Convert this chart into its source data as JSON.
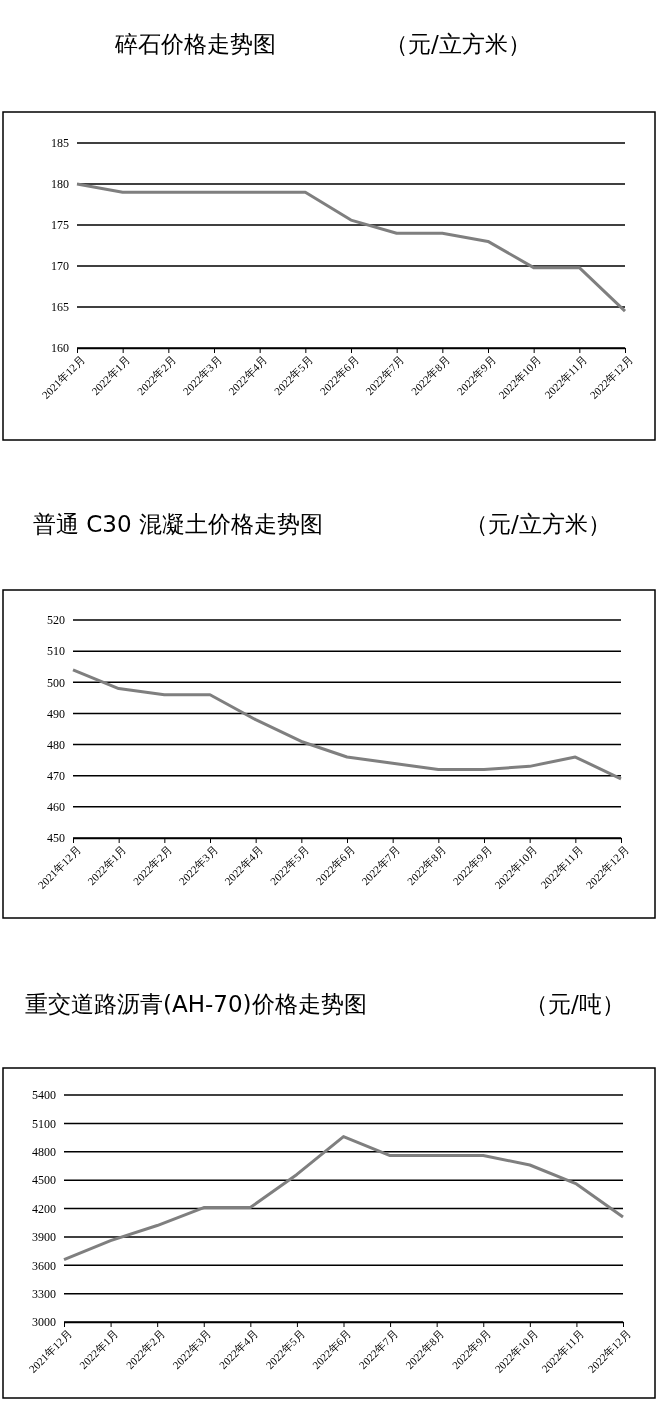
{
  "chart_data": [
    {
      "type": "line",
      "title": "碎石价格走势图",
      "subtitle": "（元/立方米）",
      "categories": [
        "2021年12月",
        "2022年1月",
        "2022年2月",
        "2022年3月",
        "2022年4月",
        "2022年5月",
        "2022年6月",
        "2022年7月",
        "2022年8月",
        "2022年9月",
        "2022年10月",
        "2022年11月",
        "2022年12月"
      ],
      "series": [
        {
          "color": "#7f7f7f",
          "values": [
            180,
            179,
            179,
            179,
            179,
            179,
            175.6,
            174,
            174,
            173,
            169.8,
            169.8,
            164.5
          ]
        }
      ],
      "ylim": [
        160,
        185
      ],
      "yticks": [
        160,
        165,
        170,
        175,
        180,
        185
      ],
      "grid": "y"
    },
    {
      "type": "line",
      "title": "普通 C30 混凝土价格走势图",
      "subtitle": "（元/立方米）",
      "categories": [
        "2021年12月",
        "2022年1月",
        "2022年2月",
        "2022年3月",
        "2022年4月",
        "2022年5月",
        "2022年6月",
        "2022年7月",
        "2022年8月",
        "2022年9月",
        "2022年10月",
        "2022年11月",
        "2022年12月"
      ],
      "series": [
        {
          "color": "#7f7f7f",
          "values": [
            504,
            498,
            496,
            496,
            488,
            481,
            476,
            474,
            472,
            472,
            473,
            476,
            469
          ]
        }
      ],
      "ylim": [
        450,
        520
      ],
      "yticks": [
        450,
        460,
        470,
        480,
        490,
        500,
        510,
        520
      ],
      "grid": "y"
    },
    {
      "type": "line",
      "title": "重交道路沥青(AH-70)价格走势图",
      "subtitle": "（元/吨）",
      "categories": [
        "2021年12月",
        "2022年1月",
        "2022年2月",
        "2022年3月",
        "2022年4月",
        "2022年5月",
        "2022年6月",
        "2022年7月",
        "2022年8月",
        "2022年9月",
        "2022年10月",
        "2022年11月",
        "2022年12月"
      ],
      "series": [
        {
          "color": "#7f7f7f",
          "values": [
            3660,
            3860,
            4020,
            4210,
            4210,
            4560,
            4960,
            4760,
            4760,
            4760,
            4660,
            4460,
            4110
          ]
        }
      ],
      "ylim": [
        3000,
        5400
      ],
      "yticks": [
        3000,
        3300,
        3600,
        3900,
        4200,
        4500,
        4800,
        5100,
        5400
      ],
      "grid": "y"
    }
  ]
}
